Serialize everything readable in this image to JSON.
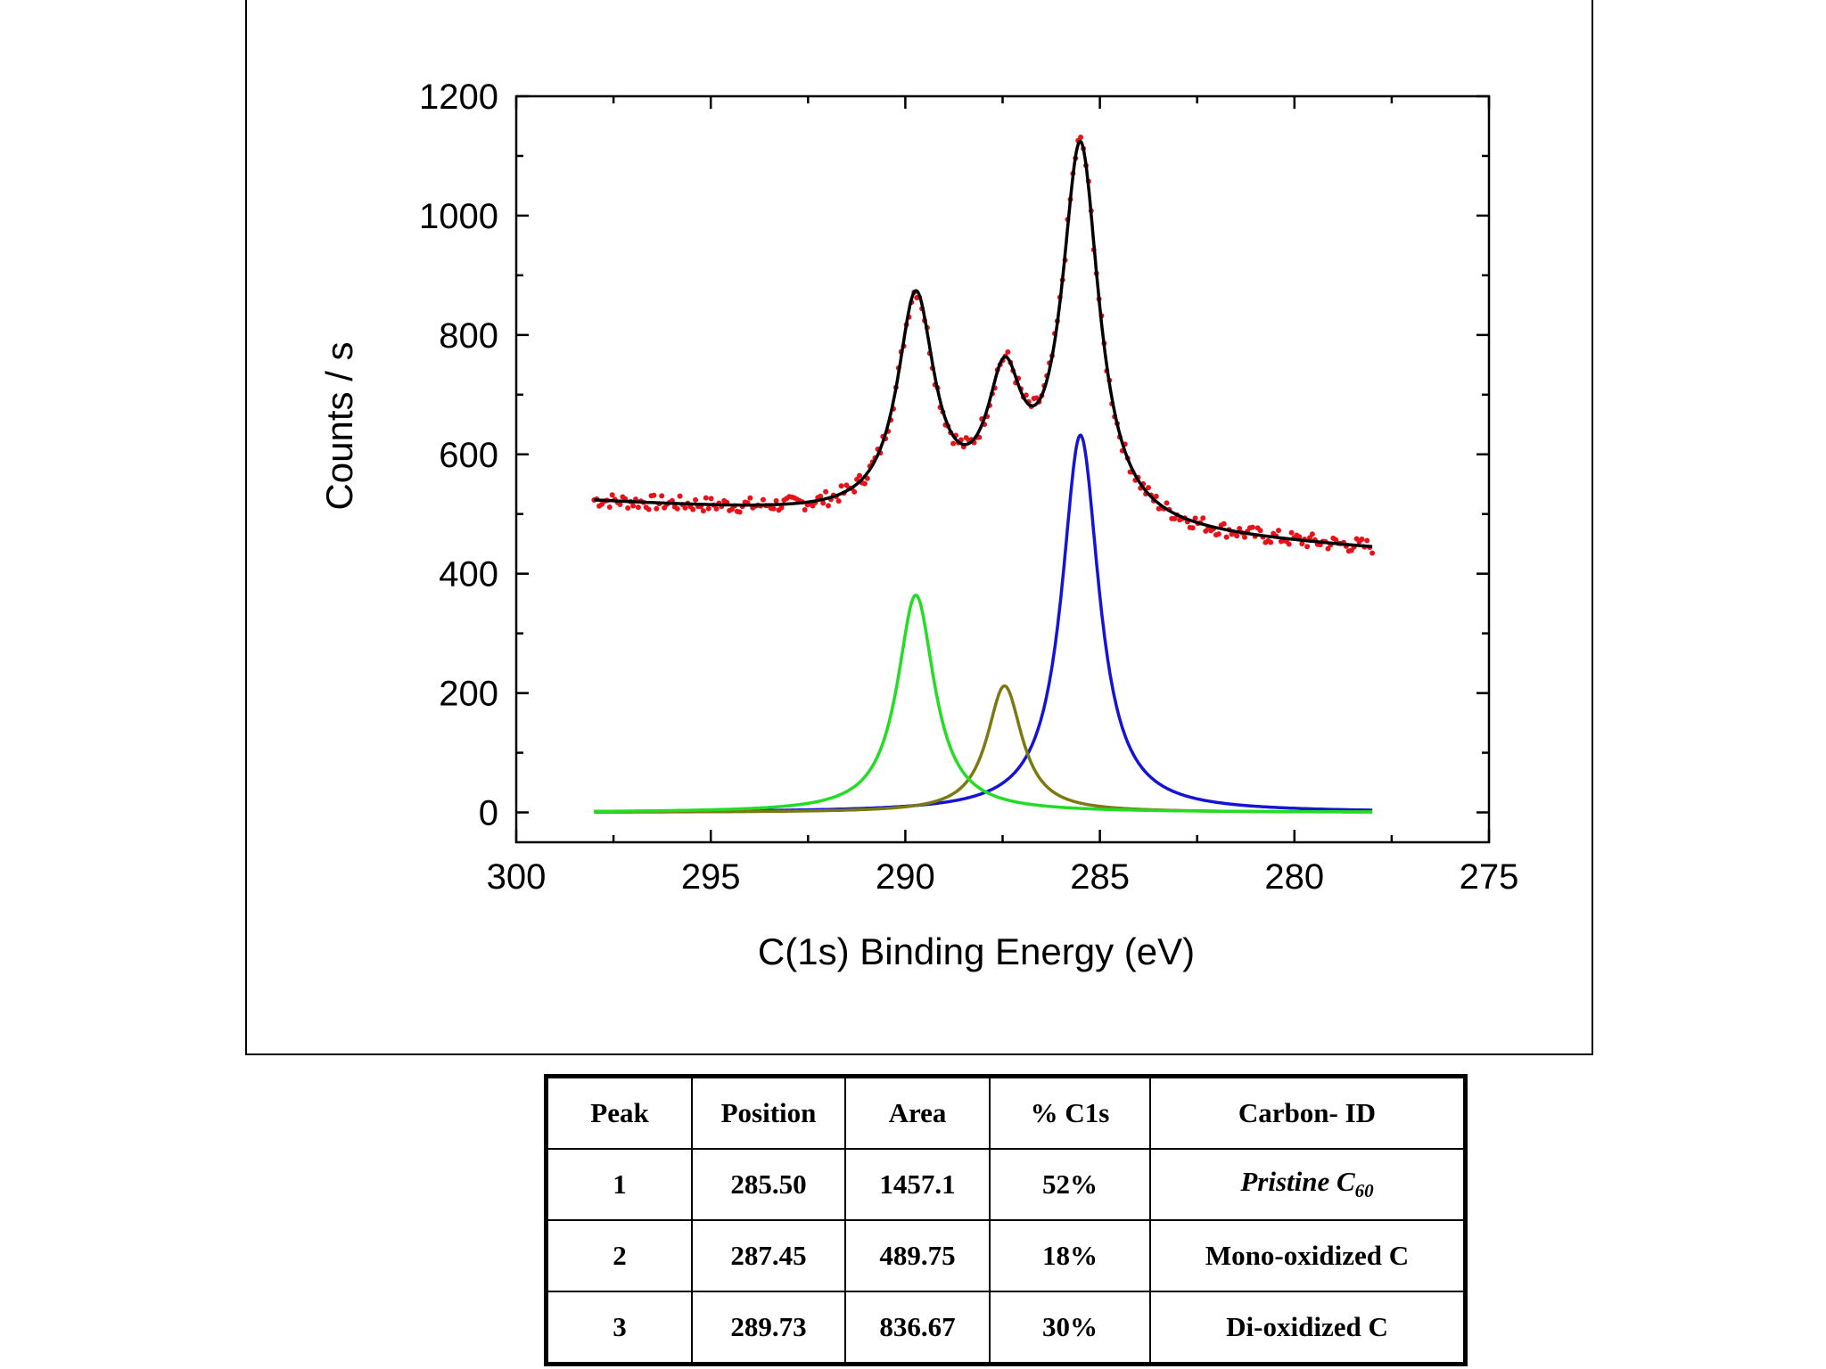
{
  "chart_data": {
    "type": "line",
    "title": "",
    "xlabel": "C(1s) Binding Energy (eV)",
    "ylabel": "Counts / s",
    "xlim": [
      300,
      275
    ],
    "ylim": [
      -50,
      1200
    ],
    "x_reversed": true,
    "xticks": [
      300,
      295,
      290,
      285,
      280,
      275
    ],
    "yticks": [
      0,
      200,
      400,
      600,
      800,
      1000,
      1200
    ],
    "grid": false,
    "legend": "none",
    "baseline": {
      "x_start": 298,
      "y_start": 520,
      "x_end": 278,
      "y_end": 440
    },
    "series": [
      {
        "role": "data",
        "color": "#e8131a",
        "marker": "dot",
        "x_range": [
          298,
          278
        ],
        "n_points": 300
      },
      {
        "role": "envelope",
        "color": "#000000"
      },
      {
        "role": "component",
        "color": "#1414d4",
        "center": 285.5,
        "height": 632,
        "hwhm": 0.58
      },
      {
        "role": "component",
        "color": "#7a7a10",
        "center": 287.45,
        "height": 212,
        "hwhm": 0.55
      },
      {
        "role": "component",
        "color": "#22dd22",
        "center": 289.73,
        "height": 364,
        "hwhm": 0.58
      }
    ]
  },
  "table": {
    "headers": [
      "Peak",
      "Position",
      "Area",
      "% C1s",
      "Carbon- ID"
    ],
    "rows": [
      {
        "peak": "1",
        "position": "285.50",
        "area": "1457.1",
        "percent": "52%",
        "id_main": "Pristine C",
        "id_sub": "60"
      },
      {
        "peak": "2",
        "position": "287.45",
        "area": "489.75",
        "percent": "18%",
        "id_main": "Mono-oxidized C",
        "id_sub": ""
      },
      {
        "peak": "3",
        "position": "289.73",
        "area": "836.67",
        "percent": "30%",
        "id_main": "Di-oxidized C",
        "id_sub": ""
      }
    ]
  }
}
